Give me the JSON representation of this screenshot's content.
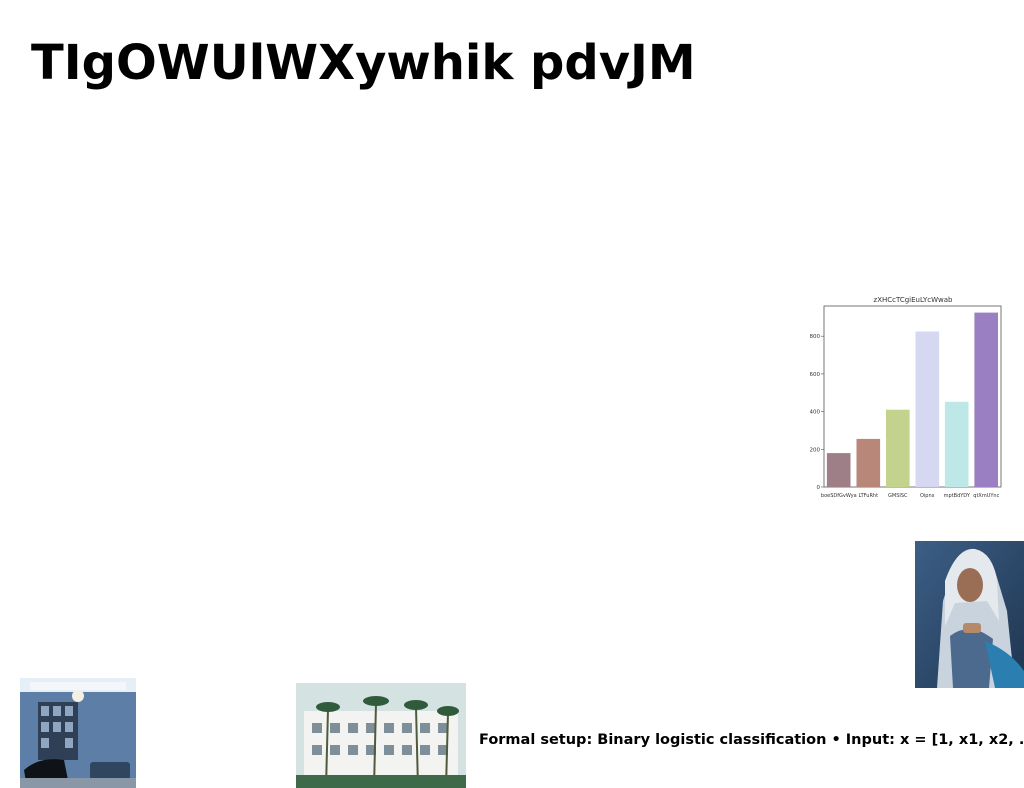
{
  "slide": {
    "title": "TIgOWUlWXywhik pdvJM",
    "formal_text": "Formal setup: Binary logistic classification • Input: x = [1, x1, x2, . . ."
  },
  "images": {
    "woman": "seated woman in headscarf photo",
    "room": "blue living room with piano photo",
    "building": "white building with palm trees photo"
  },
  "chart_data": {
    "type": "bar",
    "title": "zXHCcTCgiEuLYcWwab",
    "categories": [
      "boeSDfGvWya",
      "LTFuRht",
      "GMSISC",
      "Oipnx",
      "mptBdYDY",
      "qtXmUYnc"
    ],
    "values": [
      180,
      255,
      410,
      825,
      452,
      925
    ],
    "colors": [
      "#9e7f88",
      "#b9867a",
      "#c3d38e",
      "#d6d7f1",
      "#bde8e7",
      "#9a7fc2"
    ],
    "ylim": [
      0,
      960
    ],
    "yticks": [
      0,
      200,
      400,
      600,
      800
    ],
    "grid": false,
    "xlabel": "",
    "ylabel": ""
  }
}
